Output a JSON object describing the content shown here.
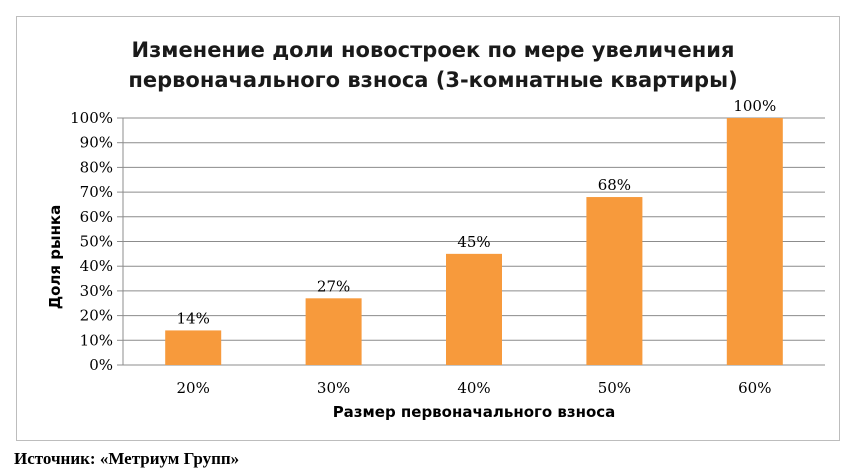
{
  "chart_data": {
    "type": "bar",
    "title_lines": [
      "Изменение доли новостроек по мере увеличения",
      "первоначального взноса (3-комнатные квартиры)"
    ],
    "categories": [
      "20%",
      "30%",
      "40%",
      "50%",
      "60%"
    ],
    "values": [
      14,
      27,
      45,
      68,
      100
    ],
    "value_labels": [
      "14%",
      "27%",
      "45%",
      "68%",
      "100%"
    ],
    "ylim": [
      0,
      100
    ],
    "y_ticks": [
      0,
      10,
      20,
      30,
      40,
      50,
      60,
      70,
      80,
      90,
      100
    ],
    "y_tick_labels": [
      "0%",
      "10%",
      "20%",
      "30%",
      "40%",
      "50%",
      "60%",
      "70%",
      "80%",
      "90%",
      "100%"
    ],
    "xlabel": "Размер первоначального взноса",
    "ylabel": "Доля рынка",
    "grid": true,
    "legend": "none",
    "bar_color": "#F79A3C",
    "grid_color": "#8c8c8c"
  },
  "source_text": "Источник: «Метриум Групп»"
}
